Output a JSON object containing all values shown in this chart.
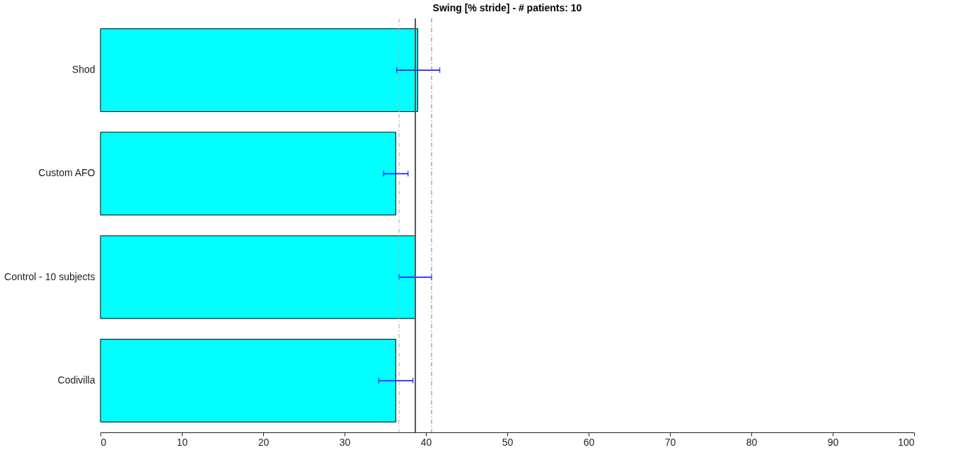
{
  "chart_data": {
    "type": "bar",
    "orientation": "horizontal",
    "title": "Swing [% stride] - # patients: 10",
    "categories": [
      "Shod",
      "Custom AFO",
      "Control - 10 subjects",
      "Codivilla"
    ],
    "values": [
      39.0,
      36.3,
      38.7,
      36.3
    ],
    "errors": [
      [
        36.4,
        41.7
      ],
      [
        34.8,
        37.8
      ],
      [
        36.7,
        40.7
      ],
      [
        34.2,
        38.4
      ]
    ],
    "color": "#00ffff",
    "xlim": [
      0,
      100
    ],
    "xticks": [
      0,
      10,
      20,
      30,
      40,
      50,
      60,
      70,
      80,
      90,
      100
    ],
    "ref_lines": [
      {
        "axis": "x",
        "value": 38.7,
        "color": "#555555",
        "line_style": "solid"
      },
      {
        "axis": "x",
        "value": 36.7,
        "color": "#aaaaaa",
        "line_style": "dashdot"
      },
      {
        "axis": "x",
        "value": 40.7,
        "color": "#777777",
        "line_style": "dashdot"
      }
    ],
    "grid": false
  }
}
